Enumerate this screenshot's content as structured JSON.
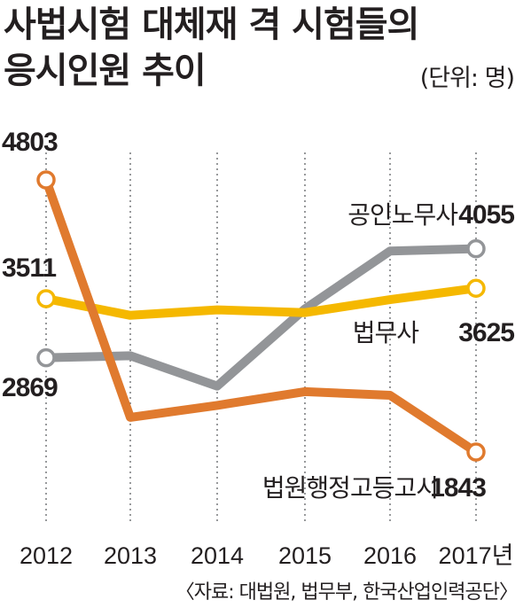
{
  "title_line1": "사법시험 대체재 격 시험들의",
  "title_line2": "응시인원 추이",
  "unit": "(단위: 명)",
  "source": "〈자료: 대법원, 법무부, 한국산업인력공단〉",
  "chart_data": {
    "type": "line",
    "title": "사법시험 대체재 격 시험들의 응시인원 추이",
    "x": [
      "2012",
      "2013",
      "2014",
      "2015",
      "2016",
      "2017년"
    ],
    "grid": "vertical",
    "series": [
      {
        "name": "법원행정고등고시",
        "color": "#e07a2e",
        "values": [
          4803,
          2220,
          2350,
          2500,
          2460,
          1843
        ],
        "labels": {
          "0": "4803",
          "5": "1843"
        }
      },
      {
        "name": "법무사",
        "color": "#f5b800",
        "values": [
          3511,
          3330,
          3390,
          3360,
          3500,
          3625
        ],
        "labels": {
          "0": "3511",
          "5": "3625"
        }
      },
      {
        "name": "공인노무사",
        "color": "#939598",
        "values": [
          2869,
          2890,
          2560,
          3400,
          4030,
          4055
        ],
        "labels": {
          "0": "2869",
          "5": "4055"
        }
      }
    ]
  }
}
